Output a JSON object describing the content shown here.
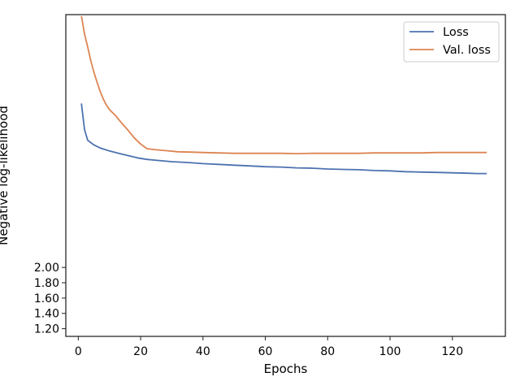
{
  "chart_data": {
    "type": "line",
    "xlabel": "Epochs",
    "ylabel": "Negative log-likelihood",
    "xlim": [
      -4,
      137
    ],
    "ylim": [
      1.1,
      5.3
    ],
    "x_ticks": [
      0,
      20,
      40,
      60,
      80,
      100,
      120
    ],
    "x_tick_labels": [
      "0",
      "20",
      "40",
      "60",
      "80",
      "100",
      "120"
    ],
    "y_ticks": [
      1.2,
      1.4,
      1.6,
      1.8,
      2.0
    ],
    "y_tick_labels": [
      "1.20",
      "1.40",
      "1.60",
      "1.80",
      "2.00"
    ],
    "legend_position": "top-right",
    "grid": false,
    "series": [
      {
        "name": "Loss",
        "color": "#4c72b0",
        "x": [
          1,
          2,
          3,
          5,
          7,
          10,
          13,
          16,
          19,
          22,
          26,
          30,
          35,
          40,
          45,
          50,
          55,
          60,
          65,
          70,
          75,
          80,
          85,
          90,
          95,
          100,
          105,
          110,
          115,
          120,
          125,
          128,
          131
        ],
        "y": [
          4.14,
          3.8,
          3.66,
          3.6,
          3.56,
          3.52,
          3.49,
          3.46,
          3.43,
          3.41,
          3.395,
          3.38,
          3.37,
          3.355,
          3.345,
          3.335,
          3.325,
          3.315,
          3.31,
          3.3,
          3.295,
          3.285,
          3.28,
          3.275,
          3.265,
          3.26,
          3.25,
          3.245,
          3.24,
          3.235,
          3.23,
          3.225,
          3.225
        ]
      },
      {
        "name": "Val. loss",
        "color": "#dd8452",
        "x": [
          1,
          2,
          3,
          4,
          5,
          6,
          7,
          8,
          9,
          10,
          12,
          14,
          16,
          18,
          20,
          22,
          25,
          28,
          32,
          36,
          40,
          45,
          50,
          55,
          60,
          65,
          70,
          75,
          80,
          85,
          90,
          95,
          100,
          105,
          110,
          115,
          120,
          125,
          128,
          131
        ],
        "y": [
          5.28,
          5.05,
          4.88,
          4.7,
          4.55,
          4.42,
          4.3,
          4.2,
          4.12,
          4.06,
          3.98,
          3.88,
          3.79,
          3.69,
          3.61,
          3.55,
          3.535,
          3.525,
          3.51,
          3.505,
          3.5,
          3.495,
          3.49,
          3.49,
          3.49,
          3.49,
          3.485,
          3.49,
          3.49,
          3.49,
          3.49,
          3.495,
          3.495,
          3.495,
          3.495,
          3.5,
          3.5,
          3.5,
          3.5,
          3.5
        ]
      }
    ]
  }
}
